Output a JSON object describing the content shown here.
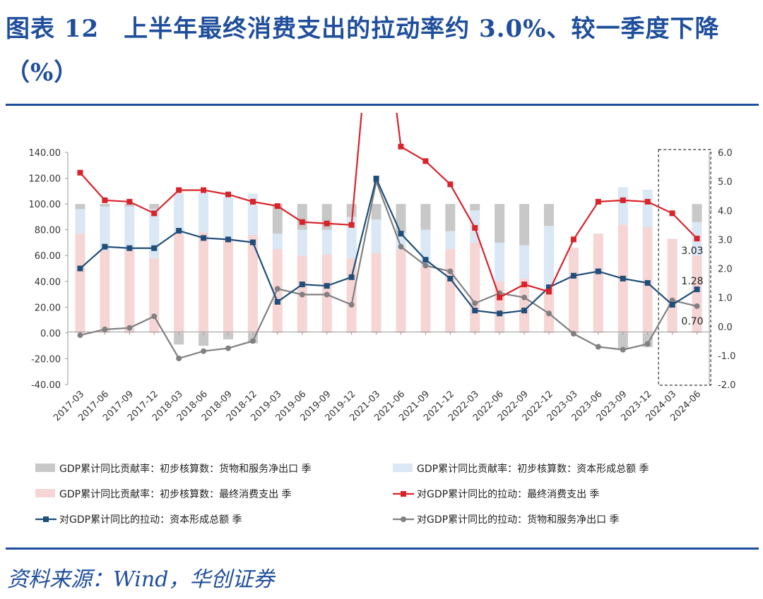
{
  "title": "图表 12　上半年最终消费支出的拉动率约 3.0%、较一季度下降（%）",
  "source": "资料来源：Wind，华创证券",
  "chart_data": {
    "type": "bar",
    "categories": [
      "2017-03",
      "2017-06",
      "2017-09",
      "2017-12",
      "2018-03",
      "2018-06",
      "2018-09",
      "2018-12",
      "2019-03",
      "2019-06",
      "2019-09",
      "2019-12",
      "2021-03",
      "2021-06",
      "2021-09",
      "2021-12",
      "2022-03",
      "2022-06",
      "2022-09",
      "2022-12",
      "2023-03",
      "2023-06",
      "2023-09",
      "2023-12",
      "2024-03",
      "2024-06"
    ],
    "left_axis": {
      "min": -40,
      "max": 140,
      "ticks": [
        "140.00",
        "120.00",
        "100.00",
        "80.00",
        "60.00",
        "40.00",
        "20.00",
        "0.00",
        "-20.00",
        "-40.00"
      ]
    },
    "right_axis": {
      "min": -2,
      "max": 6,
      "ticks": [
        "6.0",
        "5.0",
        "4.0",
        "3.0",
        "2.0",
        "1.0",
        "0.0",
        "-1.0",
        "-2.0"
      ]
    },
    "bar_series": [
      {
        "name": "GDP累计同比贡献率：初步核算数：最终消费支出 季",
        "color": "#f6d5d5",
        "axis": "left",
        "values": [
          77,
          64,
          64,
          58,
          77,
          78,
          73,
          76,
          65,
          60,
          61,
          58,
          62,
          65,
          52,
          65,
          70,
          40,
          42,
          35,
          66,
          77,
          84,
          82,
          73,
          60
        ]
      },
      {
        "name": "GDP累计同比贡献率：初步核算数：资本形成总额 季",
        "color": "#dae7f5",
        "axis": "left",
        "values": [
          19,
          34,
          34,
          38,
          31,
          31,
          32,
          32,
          12,
          20,
          19,
          32,
          26,
          13,
          28,
          14,
          25,
          30,
          26,
          48,
          0,
          0,
          29,
          29,
          0,
          26
        ]
      },
      {
        "name": "GDP累计同比贡献率：初步核算数：货物和服务净出口 季",
        "color": "#c8c8c8",
        "axis": "left",
        "values": [
          4,
          2,
          2,
          4,
          -9,
          -10,
          -5,
          -8,
          23,
          20,
          20,
          10,
          12,
          22,
          20,
          21,
          5,
          30,
          32,
          17,
          0,
          0,
          -13,
          -11,
          0,
          14
        ]
      }
    ],
    "line_series": [
      {
        "name": "对GDP累计同比的拉动：最终消费支出 季",
        "color": "#d9232a",
        "marker": "square",
        "axis": "right",
        "values": [
          5.3,
          4.35,
          4.3,
          3.9,
          4.7,
          4.7,
          4.55,
          4.3,
          4.15,
          3.6,
          3.55,
          3.5,
          13.0,
          6.2,
          5.7,
          4.9,
          3.4,
          1.0,
          1.45,
          1.2,
          3.0,
          4.3,
          4.35,
          4.3,
          3.9,
          3.03
        ]
      },
      {
        "name": "对GDP累计同比的拉动：资本形成总额 季",
        "color": "#1f4e79",
        "marker": "square",
        "axis": "right",
        "values": [
          2.0,
          2.75,
          2.7,
          2.7,
          3.3,
          3.05,
          3.0,
          2.9,
          0.85,
          1.45,
          1.4,
          1.7,
          5.1,
          3.2,
          2.3,
          1.65,
          0.55,
          0.45,
          0.55,
          1.35,
          1.75,
          1.9,
          1.65,
          1.5,
          0.75,
          1.28
        ]
      },
      {
        "name": "对GDP累计同比的拉动：货物和服务净出口 季",
        "color": "#808080",
        "marker": "circle",
        "axis": "right",
        "values": [
          -0.3,
          -0.1,
          -0.05,
          0.35,
          -1.1,
          -0.85,
          -0.75,
          -0.5,
          1.3,
          1.1,
          1.1,
          0.75,
          5.0,
          2.75,
          2.1,
          1.9,
          0.8,
          1.15,
          1.0,
          0.45,
          -0.25,
          -0.7,
          -0.8,
          -0.6,
          0.9,
          0.7
        ]
      }
    ],
    "annotations": [
      {
        "text": "3.03"
      },
      {
        "text": "1.28"
      },
      {
        "text": "0.70"
      }
    ],
    "highlight_box": {
      "from": "2024-03",
      "to": "2024-06",
      "style": "dashed"
    },
    "legend_placement": "bottom",
    "grid": false
  }
}
